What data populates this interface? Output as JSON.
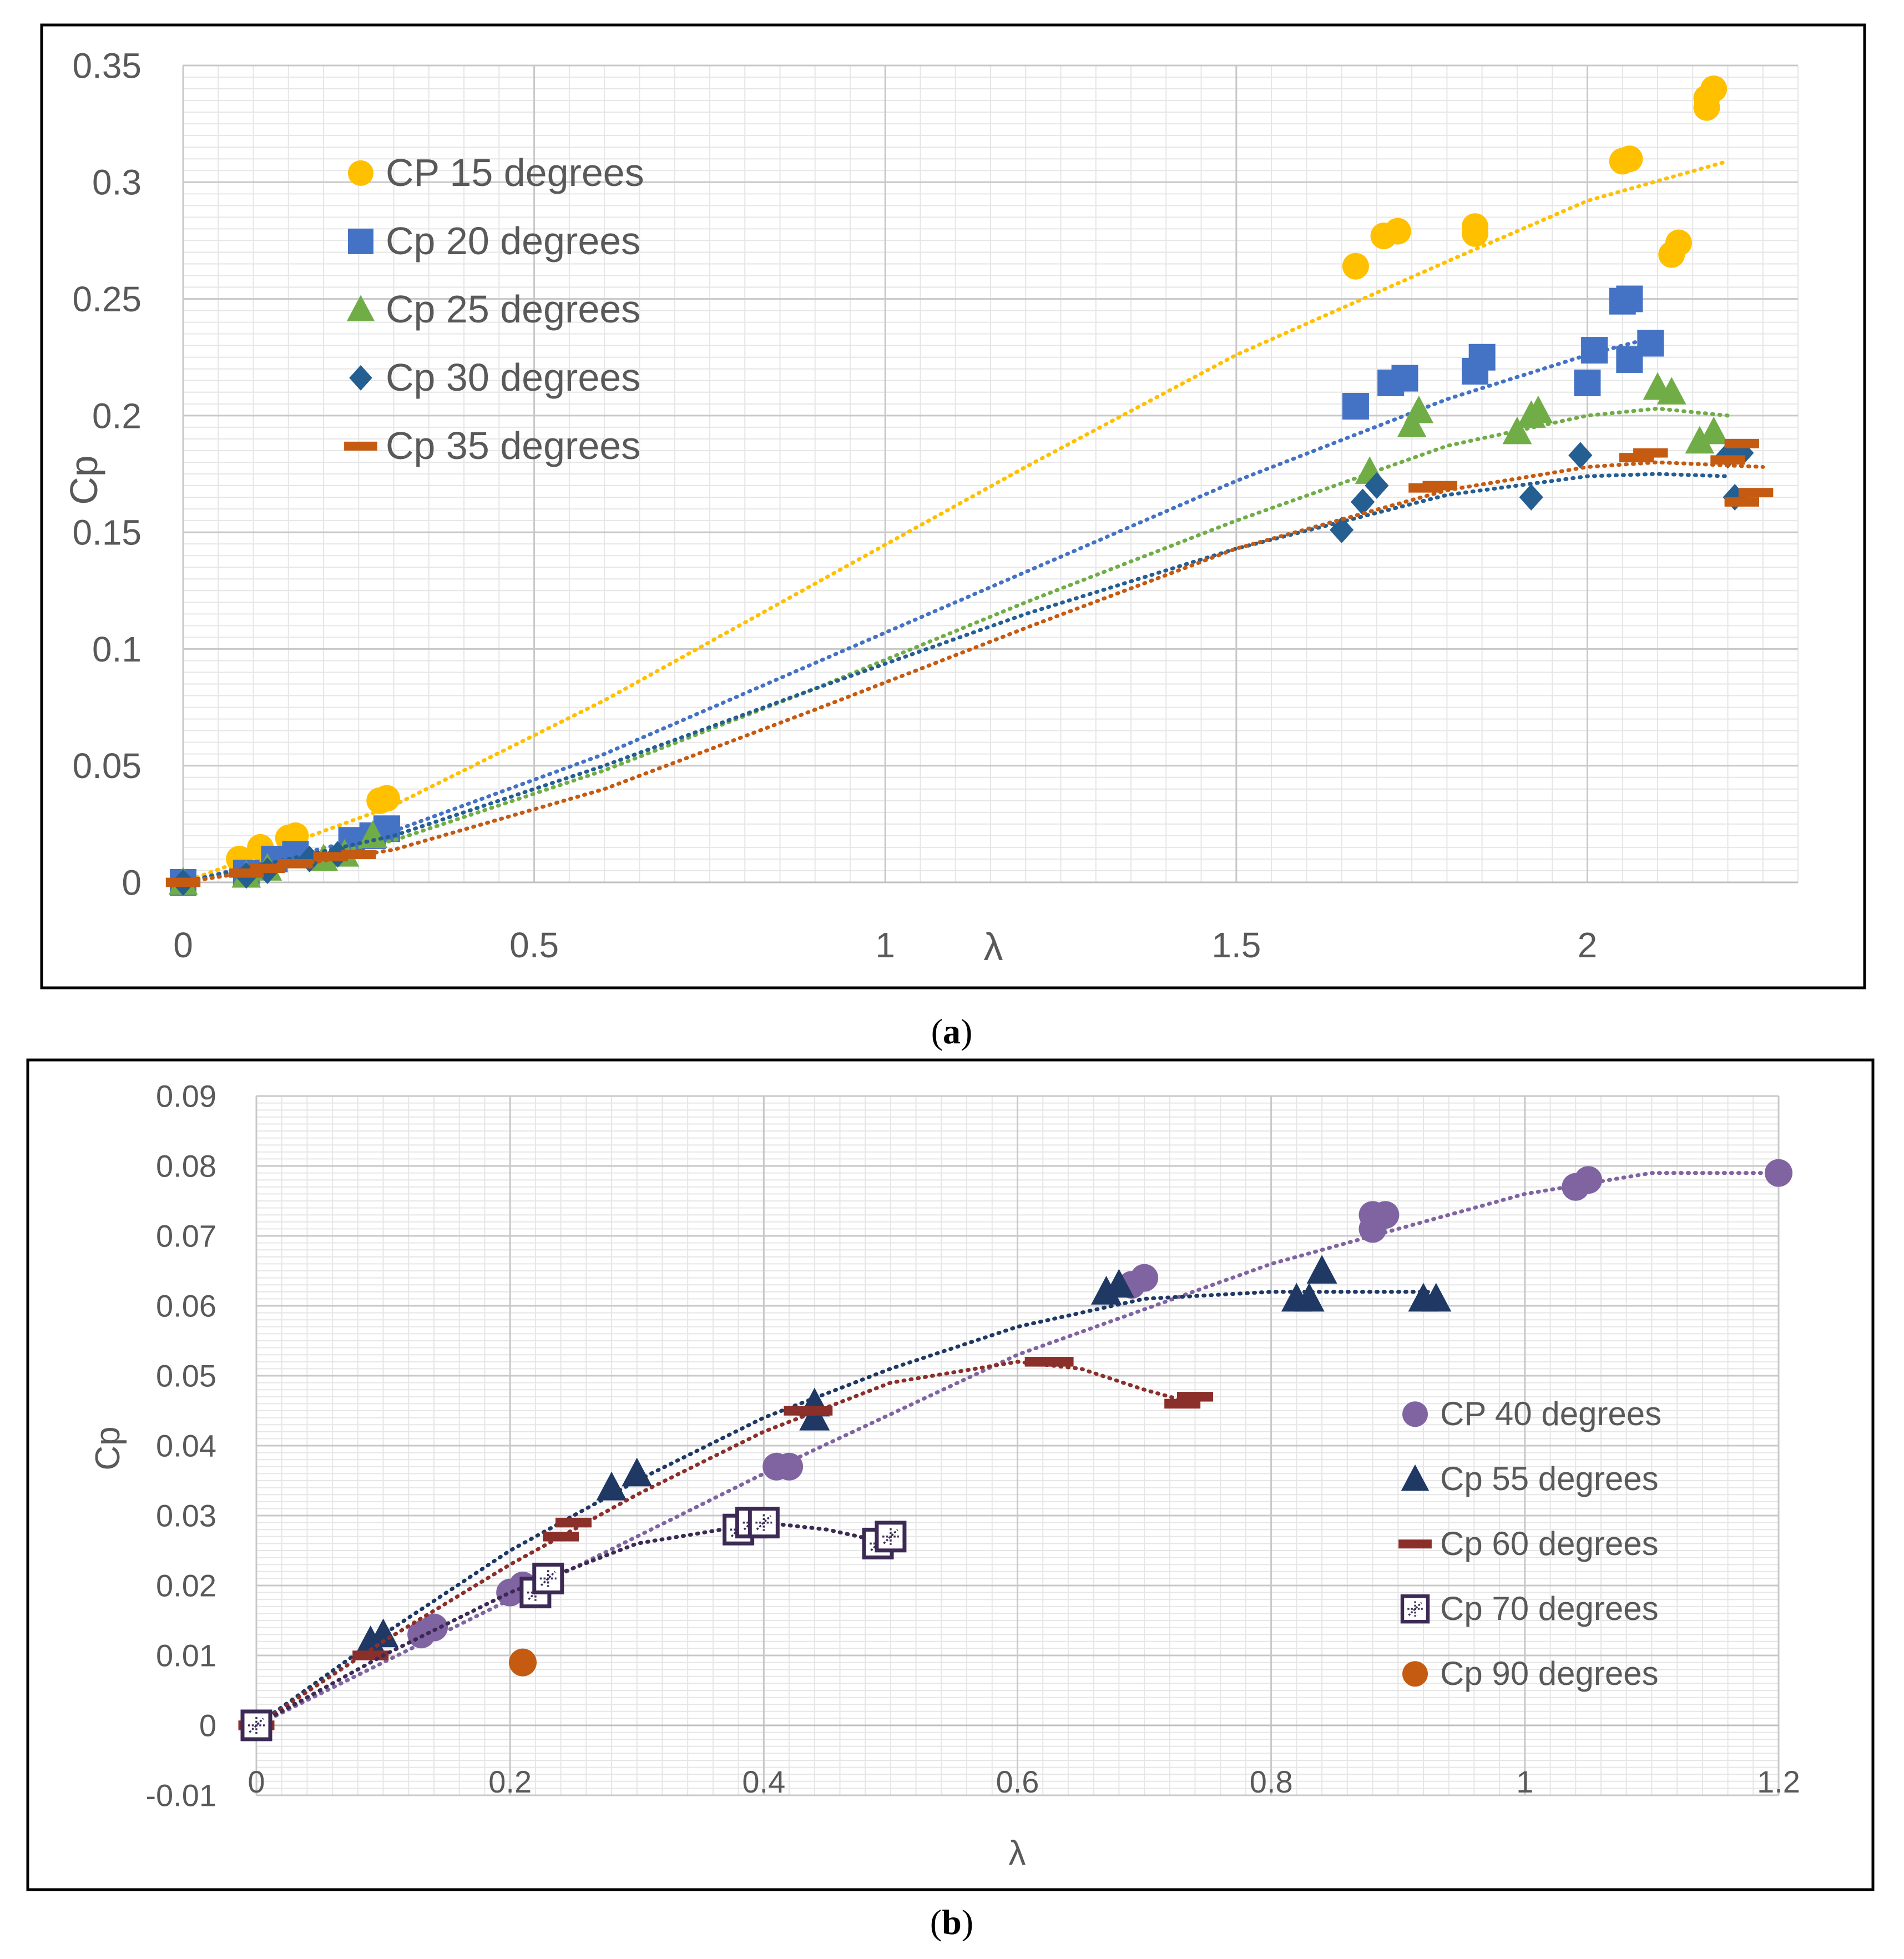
{
  "chart_data": [
    {
      "id": "a",
      "type": "scatter",
      "caption_label": "a",
      "xlabel": "λ",
      "ylabel": "Cp",
      "xlim": [
        0,
        2.3
      ],
      "ylim": [
        0,
        0.35
      ],
      "xticks": [
        0,
        0.5,
        1,
        1.5,
        2
      ],
      "xtick_labels": [
        "0",
        "0.5",
        "1",
        "1.5",
        "2"
      ],
      "yticks": [
        0,
        0.05,
        0.1,
        0.15,
        0.2,
        0.25,
        0.3,
        0.35
      ],
      "ytick_labels": [
        "0",
        "0.05",
        "0.1",
        "0.15",
        "0.2",
        "0.25",
        "0.3",
        "0.35"
      ],
      "legend_position": "upper-left",
      "series": [
        {
          "name": "CP 15 degrees",
          "marker": "circle",
          "color": "#FFC000",
          "points": [
            [
              0,
              0
            ],
            [
              0.08,
              0.01
            ],
            [
              0.11,
              0.015
            ],
            [
              0.15,
              0.019
            ],
            [
              0.16,
              0.02
            ],
            [
              0.28,
              0.035
            ],
            [
              0.29,
              0.036
            ],
            [
              1.67,
              0.264
            ],
            [
              1.71,
              0.277
            ],
            [
              1.73,
              0.279
            ],
            [
              1.84,
              0.278
            ],
            [
              1.84,
              0.281
            ],
            [
              2.05,
              0.309
            ],
            [
              2.06,
              0.31
            ],
            [
              2.12,
              0.269
            ],
            [
              2.13,
              0.274
            ],
            [
              2.17,
              0.332
            ],
            [
              2.17,
              0.336
            ],
            [
              2.18,
              0.34
            ]
          ],
          "trend": [
            [
              0,
              0
            ],
            [
              0.3,
              0.033
            ],
            [
              0.6,
              0.078
            ],
            [
              0.9,
              0.128
            ],
            [
              1.2,
              0.178
            ],
            [
              1.5,
              0.226
            ],
            [
              1.8,
              0.266
            ],
            [
              2.0,
              0.292
            ],
            [
              2.2,
              0.309
            ]
          ]
        },
        {
          "name": "Cp 20 degrees",
          "marker": "square",
          "color": "#4472C4",
          "points": [
            [
              0,
              0
            ],
            [
              0.09,
              0.004
            ],
            [
              0.13,
              0.01
            ],
            [
              0.16,
              0.012
            ],
            [
              0.24,
              0.018
            ],
            [
              0.27,
              0.02
            ],
            [
              0.29,
              0.023
            ],
            [
              1.67,
              0.204
            ],
            [
              1.72,
              0.214
            ],
            [
              1.74,
              0.216
            ],
            [
              1.84,
              0.219
            ],
            [
              1.85,
              0.225
            ],
            [
              2.0,
              0.214
            ],
            [
              2.01,
              0.228
            ],
            [
              2.05,
              0.249
            ],
            [
              2.06,
              0.25
            ],
            [
              2.06,
              0.224
            ],
            [
              2.09,
              0.231
            ]
          ],
          "trend": [
            [
              0,
              0
            ],
            [
              0.3,
              0.022
            ],
            [
              0.6,
              0.055
            ],
            [
              0.9,
              0.094
            ],
            [
              1.2,
              0.133
            ],
            [
              1.5,
              0.172
            ],
            [
              1.8,
              0.207
            ],
            [
              2.0,
              0.226
            ],
            [
              2.1,
              0.234
            ]
          ]
        },
        {
          "name": "Cp 25 degrees",
          "marker": "triangle",
          "color": "#70AD47",
          "points": [
            [
              0,
              0
            ],
            [
              0.09,
              0.003
            ],
            [
              0.12,
              0.006
            ],
            [
              0.2,
              0.01
            ],
            [
              0.23,
              0.012
            ],
            [
              0.27,
              0.02
            ],
            [
              1.69,
              0.176
            ],
            [
              1.75,
              0.196
            ],
            [
              1.76,
              0.202
            ],
            [
              1.9,
              0.193
            ],
            [
              1.92,
              0.2
            ],
            [
              1.93,
              0.202
            ],
            [
              2.1,
              0.212
            ],
            [
              2.12,
              0.21
            ],
            [
              2.16,
              0.189
            ],
            [
              2.18,
              0.193
            ]
          ],
          "trend": [
            [
              0,
              0
            ],
            [
              0.3,
              0.018
            ],
            [
              0.6,
              0.048
            ],
            [
              0.9,
              0.083
            ],
            [
              1.2,
              0.12
            ],
            [
              1.5,
              0.155
            ],
            [
              1.8,
              0.187
            ],
            [
              2.0,
              0.2
            ],
            [
              2.1,
              0.203
            ],
            [
              2.2,
              0.2
            ]
          ]
        },
        {
          "name": "Cp 30 degrees",
          "marker": "diamond",
          "color": "#255E91",
          "points": [
            [
              0,
              0
            ],
            [
              0.09,
              0.003
            ],
            [
              0.12,
              0.005
            ],
            [
              0.18,
              0.01
            ],
            [
              0.22,
              0.012
            ],
            [
              1.65,
              0.151
            ],
            [
              1.68,
              0.163
            ],
            [
              1.7,
              0.17
            ],
            [
              1.92,
              0.165
            ],
            [
              1.99,
              0.183
            ],
            [
              2.2,
              0.183
            ],
            [
              2.21,
              0.165
            ],
            [
              2.22,
              0.184
            ]
          ],
          "trend": [
            [
              0,
              0
            ],
            [
              0.3,
              0.02
            ],
            [
              0.6,
              0.05
            ],
            [
              0.9,
              0.083
            ],
            [
              1.2,
              0.115
            ],
            [
              1.5,
              0.143
            ],
            [
              1.8,
              0.166
            ],
            [
              2.0,
              0.174
            ],
            [
              2.1,
              0.175
            ],
            [
              2.2,
              0.174
            ]
          ]
        },
        {
          "name": "Cp 35 degrees",
          "marker": "dash",
          "color": "#C55A11",
          "points": [
            [
              0,
              0
            ],
            [
              0.09,
              0.004
            ],
            [
              0.12,
              0.006
            ],
            [
              0.16,
              0.008
            ],
            [
              0.21,
              0.011
            ],
            [
              0.25,
              0.012
            ],
            [
              1.77,
              0.169
            ],
            [
              1.79,
              0.17
            ],
            [
              2.07,
              0.182
            ],
            [
              2.09,
              0.184
            ],
            [
              2.2,
              0.181
            ],
            [
              2.22,
              0.188
            ],
            [
              2.22,
              0.163
            ],
            [
              2.24,
              0.167
            ]
          ],
          "trend": [
            [
              0,
              0
            ],
            [
              0.3,
              0.014
            ],
            [
              0.6,
              0.04
            ],
            [
              0.9,
              0.074
            ],
            [
              1.2,
              0.109
            ],
            [
              1.5,
              0.143
            ],
            [
              1.8,
              0.168
            ],
            [
              2.0,
              0.178
            ],
            [
              2.1,
              0.18
            ],
            [
              2.25,
              0.178
            ]
          ]
        }
      ]
    },
    {
      "id": "b",
      "type": "scatter",
      "caption_label": "b",
      "xlabel": "λ",
      "ylabel": "Cp",
      "xlim": [
        0,
        1.2
      ],
      "ylim": [
        -0.01,
        0.09
      ],
      "xticks": [
        0,
        0.2,
        0.4,
        0.6,
        0.8,
        1,
        1.2
      ],
      "xtick_labels": [
        "0",
        "0.2",
        "0.4",
        "0.6",
        "0.8",
        "1",
        "1.2"
      ],
      "yticks": [
        -0.01,
        0,
        0.01,
        0.02,
        0.03,
        0.04,
        0.05,
        0.06,
        0.07,
        0.08,
        0.09
      ],
      "ytick_labels": [
        "-0.01",
        "0",
        "0.01",
        "0.02",
        "0.03",
        "0.04",
        "0.05",
        "0.06",
        "0.07",
        "0.08",
        "0.09"
      ],
      "legend_position": "lower-right",
      "series": [
        {
          "name": "CP 40 degrees",
          "marker": "circle",
          "color": "#8064A2",
          "points": [
            [
              0,
              0
            ],
            [
              0.13,
              0.013
            ],
            [
              0.14,
              0.014
            ],
            [
              0.2,
              0.019
            ],
            [
              0.21,
              0.02
            ],
            [
              0.41,
              0.037
            ],
            [
              0.42,
              0.037
            ],
            [
              0.69,
              0.063
            ],
            [
              0.7,
              0.064
            ],
            [
              0.88,
              0.071
            ],
            [
              0.88,
              0.073
            ],
            [
              0.89,
              0.073
            ],
            [
              1.04,
              0.077
            ],
            [
              1.05,
              0.078
            ],
            [
              1.2,
              0.079
            ]
          ],
          "trend": [
            [
              0,
              0
            ],
            [
              0.2,
              0.018
            ],
            [
              0.4,
              0.036
            ],
            [
              0.6,
              0.053
            ],
            [
              0.8,
              0.066
            ],
            [
              1.0,
              0.076
            ],
            [
              1.1,
              0.079
            ],
            [
              1.2,
              0.079
            ]
          ]
        },
        {
          "name": "Cp 55 degrees",
          "marker": "triangle",
          "color": "#1F3864",
          "points": [
            [
              0,
              0
            ],
            [
              0.09,
              0.012
            ],
            [
              0.1,
              0.013
            ],
            [
              0.28,
              0.034
            ],
            [
              0.3,
              0.036
            ],
            [
              0.44,
              0.044
            ],
            [
              0.44,
              0.046
            ],
            [
              0.67,
              0.062
            ],
            [
              0.68,
              0.063
            ],
            [
              0.82,
              0.061
            ],
            [
              0.83,
              0.061
            ],
            [
              0.84,
              0.065
            ],
            [
              0.92,
              0.061
            ],
            [
              0.93,
              0.061
            ]
          ],
          "trend": [
            [
              0,
              0
            ],
            [
              0.1,
              0.013
            ],
            [
              0.2,
              0.025
            ],
            [
              0.3,
              0.035
            ],
            [
              0.4,
              0.044
            ],
            [
              0.5,
              0.051
            ],
            [
              0.6,
              0.057
            ],
            [
              0.7,
              0.061
            ],
            [
              0.8,
              0.062
            ],
            [
              0.9,
              0.062
            ],
            [
              0.93,
              0.062
            ]
          ]
        },
        {
          "name": "Cp 60 degrees",
          "marker": "dash",
          "color": "#8B2F2A",
          "points": [
            [
              0,
              0
            ],
            [
              0.09,
              0.01
            ],
            [
              0.24,
              0.027
            ],
            [
              0.25,
              0.029
            ],
            [
              0.43,
              0.045
            ],
            [
              0.44,
              0.045
            ],
            [
              0.62,
              0.052
            ],
            [
              0.63,
              0.052
            ],
            [
              0.73,
              0.046
            ],
            [
              0.74,
              0.047
            ]
          ],
          "trend": [
            [
              0,
              0
            ],
            [
              0.1,
              0.012
            ],
            [
              0.2,
              0.023
            ],
            [
              0.3,
              0.033
            ],
            [
              0.4,
              0.042
            ],
            [
              0.5,
              0.049
            ],
            [
              0.6,
              0.052
            ],
            [
              0.65,
              0.051
            ],
            [
              0.7,
              0.048
            ],
            [
              0.74,
              0.046
            ]
          ]
        },
        {
          "name": "Cp 70 degrees",
          "marker": "square-open",
          "color": "#3C2A55",
          "points": [
            [
              0,
              0
            ],
            [
              0.22,
              0.019
            ],
            [
              0.23,
              0.021
            ],
            [
              0.38,
              0.028
            ],
            [
              0.39,
              0.029
            ],
            [
              0.4,
              0.029
            ],
            [
              0.49,
              0.026
            ],
            [
              0.5,
              0.027
            ]
          ],
          "trend": [
            [
              0,
              0
            ],
            [
              0.1,
              0.01
            ],
            [
              0.2,
              0.019
            ],
            [
              0.3,
              0.026
            ],
            [
              0.4,
              0.029
            ],
            [
              0.45,
              0.028
            ],
            [
              0.5,
              0.026
            ]
          ]
        },
        {
          "name": "Cp 90 degrees",
          "marker": "circle",
          "color": "#C55A11",
          "points": [
            [
              0.21,
              0.009
            ]
          ],
          "trend": []
        }
      ]
    }
  ]
}
